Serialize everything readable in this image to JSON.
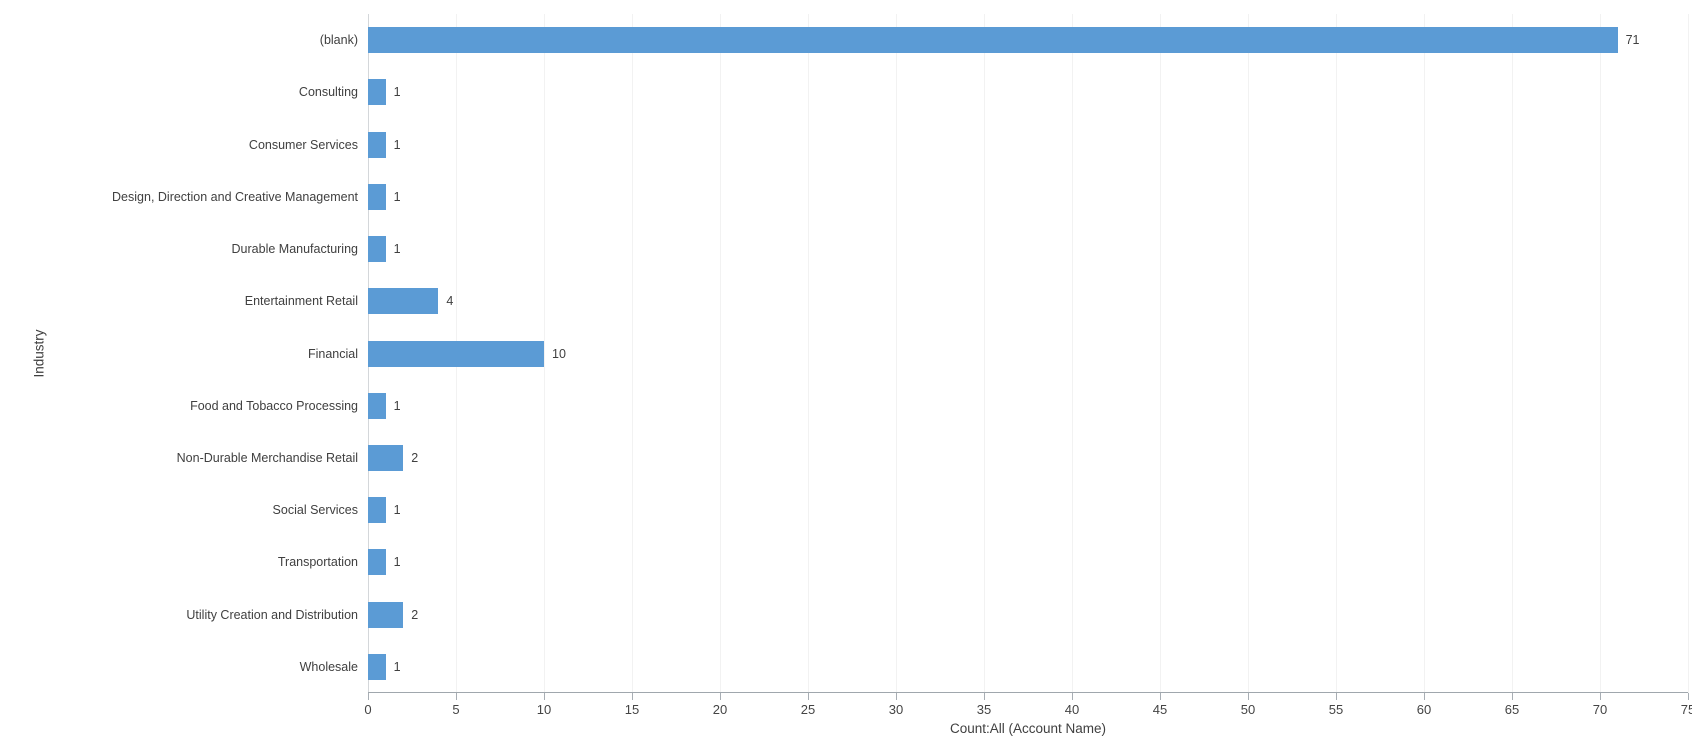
{
  "chart_data": {
    "type": "bar",
    "orientation": "horizontal",
    "title": "",
    "categories": [
      "(blank)",
      "Consulting",
      "Consumer Services",
      "Design, Direction and Creative Management",
      "Durable Manufacturing",
      "Entertainment Retail",
      "Financial",
      "Food and Tobacco Processing",
      "Non-Durable Merchandise Retail",
      "Social Services",
      "Transportation",
      "Utility Creation and Distribution",
      "Wholesale"
    ],
    "values": [
      71,
      1,
      1,
      1,
      1,
      4,
      10,
      1,
      2,
      1,
      1,
      2,
      1
    ],
    "value_labels": [
      "71",
      "1",
      "1",
      "1",
      "1",
      "4",
      "10",
      "1",
      "2",
      "1",
      "1",
      "2",
      "1"
    ],
    "xlabel": "Count:All (Account Name)",
    "ylabel": "Industry",
    "xlim": [
      0,
      75
    ],
    "xticks": [
      0,
      5,
      10,
      15,
      20,
      25,
      30,
      35,
      40,
      45,
      50,
      55,
      60,
      65,
      70,
      75
    ],
    "grid": "vertical-on",
    "legend": "none"
  },
  "colors": {
    "bar": "#5B9BD5",
    "gridline": "#f2f2f2",
    "x_axis_line": "#a0a7ad",
    "y_axis_line": "#d4d7da",
    "tick": "#a8aeb4",
    "text": "#404040",
    "background": "#ffffff"
  }
}
